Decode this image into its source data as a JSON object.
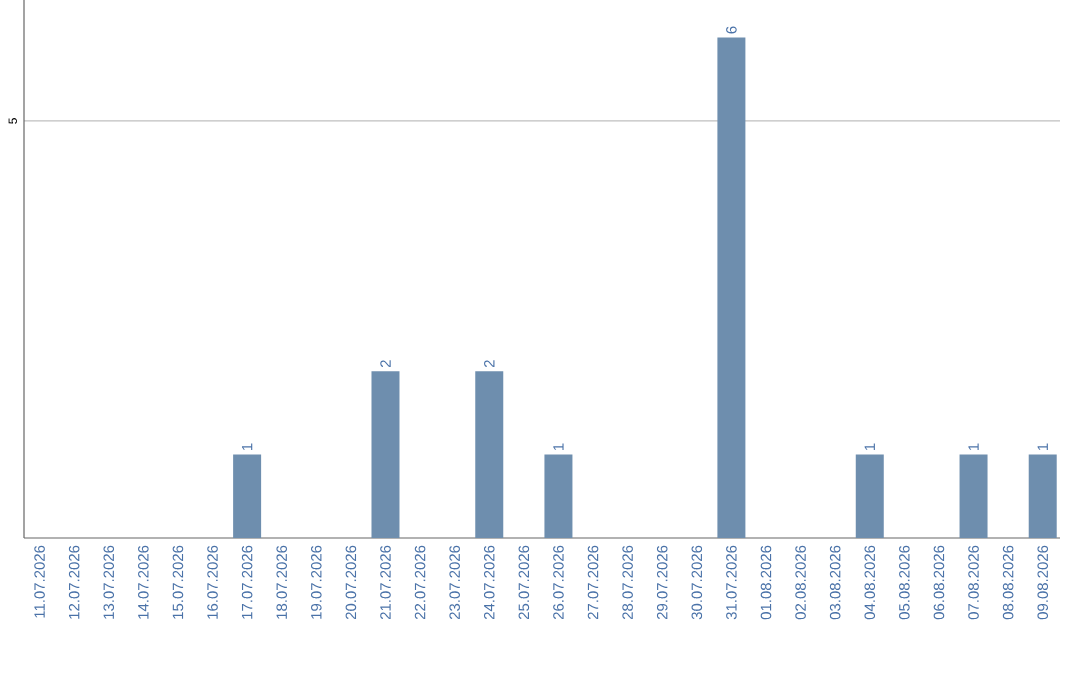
{
  "chart_data": {
    "type": "bar",
    "categories": [
      "11.07.2026",
      "12.07.2026",
      "13.07.2026",
      "14.07.2026",
      "15.07.2026",
      "16.07.2026",
      "17.07.2026",
      "18.07.2026",
      "19.07.2026",
      "20.07.2026",
      "21.07.2026",
      "22.07.2026",
      "23.07.2026",
      "24.07.2026",
      "25.07.2026",
      "26.07.2026",
      "27.07.2026",
      "28.07.2026",
      "29.07.2026",
      "30.07.2026",
      "31.07.2026",
      "01.08.2026",
      "02.08.2026",
      "03.08.2026",
      "04.08.2026",
      "05.08.2026",
      "06.08.2026",
      "07.08.2026",
      "08.08.2026",
      "09.08.2026"
    ],
    "values": [
      0,
      0,
      0,
      0,
      0,
      0,
      1,
      0,
      0,
      0,
      2,
      0,
      0,
      2,
      0,
      1,
      0,
      0,
      0,
      0,
      6,
      0,
      0,
      0,
      1,
      0,
      0,
      1,
      0,
      1
    ],
    "value_labels": [
      null,
      null,
      null,
      null,
      null,
      null,
      "1",
      null,
      null,
      null,
      "2",
      null,
      null,
      "2",
      null,
      "1",
      null,
      null,
      null,
      null,
      "6",
      null,
      null,
      null,
      "1",
      null,
      null,
      "1",
      null,
      "1"
    ],
    "color": "#6e8eae",
    "ylim": [
      0,
      6.45
    ],
    "yticks": [
      5
    ],
    "grid": "y"
  }
}
